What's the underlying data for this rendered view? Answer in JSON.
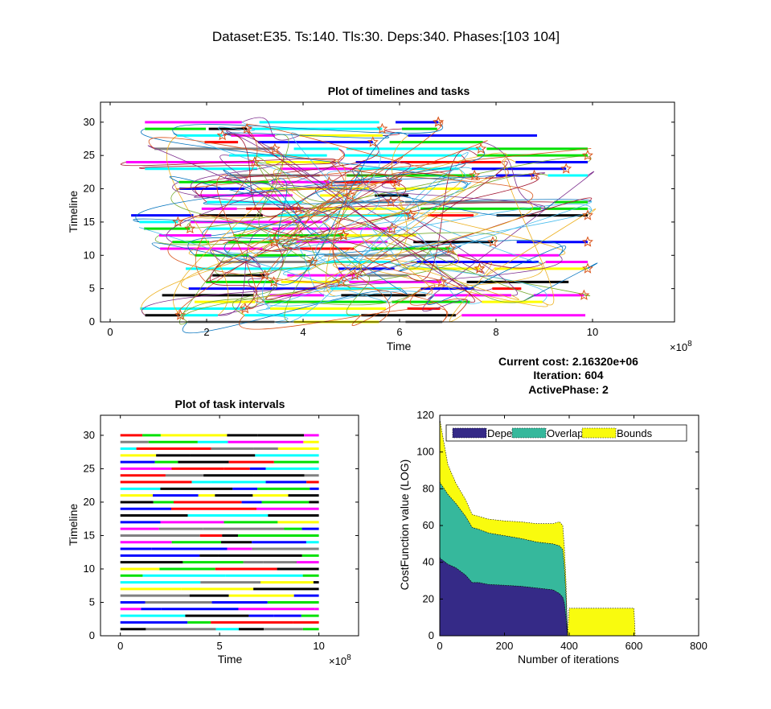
{
  "figure": {
    "title": "Dataset:E35. Ts:140. Tls:30. Deps:340. Phases:[103 104]"
  },
  "info": {
    "cost": "Current cost: 2.16320e+06",
    "iteration": "Iteration: 604",
    "phase": "ActivePhase: 2"
  },
  "colors": {
    "palette": [
      "#ff00ff",
      "#0000ff",
      "#ff0000",
      "#000000",
      "#00e000",
      "#00ffff",
      "#ffff00",
      "#808080"
    ],
    "depen": "#352a87",
    "overlap": "#36b89c",
    "bounds": "#f9fb0e"
  },
  "chart_data": [
    {
      "type": "timeline-gantt",
      "title": "Plot of timelines and tasks",
      "xlabel": "Time",
      "ylabel": "Timeline",
      "x_exponent": "×10^8",
      "xlim": [
        -0.2,
        11.7
      ],
      "ylim": [
        0,
        33
      ],
      "xticks": [
        0,
        2,
        4,
        6,
        8,
        10
      ],
      "yticks": [
        0,
        5,
        10,
        15,
        20,
        25,
        30
      ],
      "timelines": 30,
      "tasks": 140,
      "dependencies": 340,
      "x_range": [
        0.3,
        9.9
      ]
    },
    {
      "type": "timeline-gantt",
      "title": "Plot of task intervals",
      "xlabel": "Time",
      "ylabel": "Timeline",
      "x_exponent": "×10^8",
      "xlim": [
        -1,
        12
      ],
      "ylim": [
        0,
        33
      ],
      "xticks": [
        0,
        5,
        10
      ],
      "yticks": [
        0,
        5,
        10,
        15,
        20,
        25,
        30
      ],
      "timelines": 30,
      "x_range": [
        0,
        10
      ]
    },
    {
      "type": "area",
      "title": "",
      "xlabel": "Number of iterations",
      "ylabel": "CostFunction value (LOG)",
      "xlim": [
        0,
        800
      ],
      "ylim": [
        0,
        120
      ],
      "xticks": [
        0,
        200,
        400,
        600,
        800
      ],
      "yticks": [
        0,
        20,
        40,
        60,
        80,
        100,
        120
      ],
      "legend_position": "top",
      "x": [
        0,
        2,
        10,
        25,
        50,
        80,
        100,
        120,
        150,
        200,
        250,
        300,
        350,
        370,
        380,
        385,
        390,
        395,
        400,
        410,
        450,
        500,
        550,
        600,
        604
      ],
      "series": [
        {
          "name": "Depen",
          "values": [
            43,
            42,
            41,
            39,
            37,
            33,
            29,
            29,
            28,
            27.5,
            27,
            26,
            25,
            23,
            21,
            18,
            10,
            0,
            0,
            0,
            0,
            0,
            0,
            0,
            0
          ]
        },
        {
          "name": "Overlap",
          "values": [
            41,
            41,
            40,
            38,
            35,
            32,
            30,
            29,
            28,
            27,
            26,
            25,
            25,
            26,
            26,
            20,
            12,
            0,
            0,
            0,
            0,
            0,
            0,
            0,
            0
          ]
        },
        {
          "name": "Bounds",
          "values": [
            34,
            33,
            27,
            16,
            11,
            9,
            7,
            7,
            7.5,
            8,
            9,
            10,
            11,
            13,
            13,
            10,
            8,
            0,
            15,
            15,
            15,
            15,
            15,
            15,
            0
          ]
        }
      ]
    }
  ]
}
